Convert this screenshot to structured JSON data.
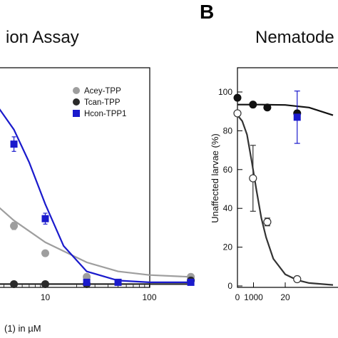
{
  "panel_b_letter": "B",
  "chart_data": [
    {
      "type": "scatter",
      "title": "ion Assay",
      "xlabel": "(1) in µM",
      "ylabel": "",
      "x_scale": "log",
      "xlim": [
        0.1,
        1000
      ],
      "x_ticks": [
        "10",
        "100",
        "1000"
      ],
      "legend_position": "top-right",
      "series": [
        {
          "name": "Acey-TPP",
          "color": "#9e9e9e",
          "marker": "circle",
          "x": [
            2,
            5,
            10,
            25,
            250
          ],
          "y": [
            58,
            33,
            18,
            5,
            5
          ],
          "error": [
            3,
            2,
            0,
            0,
            0
          ],
          "fit": {
            "x": [
              0.2,
              1,
              2,
              5,
              10,
              25,
              50,
              100,
              250
            ],
            "y": [
              92,
              70,
              56,
              36,
              24,
              13,
              8,
              6,
              5
            ]
          }
        },
        {
          "name": "Tcan-TPP",
          "color": "#2a2a2a",
          "marker": "circle",
          "x": [
            0.2,
            2,
            3.2,
            5,
            10,
            25,
            250
          ],
          "y": [
            3,
            1,
            1,
            1,
            1,
            1,
            3
          ],
          "error": [
            0,
            0,
            0,
            0,
            0,
            0,
            0
          ],
          "fit": {
            "x": [
              0.1,
              0.15,
              0.2,
              0.3,
              0.5,
              1,
              10,
              250
            ],
            "y": [
              14,
              9,
              4,
              1.5,
              1,
              1,
              1,
              1
            ]
          }
        },
        {
          "name": "Hcon-TPP1",
          "color": "#1a1acc",
          "marker": "square",
          "x": [
            2,
            5,
            10,
            25,
            50,
            250
          ],
          "y": [
            98,
            78,
            37,
            2,
            2,
            2
          ],
          "error": [
            9,
            4,
            3,
            0,
            0,
            0
          ],
          "fit": {
            "x": [
              0.2,
              1,
              2,
              3,
              5,
              7,
              10,
              15,
              25,
              50,
              100,
              250
            ],
            "y": [
              114,
              113,
              110,
              104,
              86,
              68,
              45,
              22,
              8,
              3,
              2,
              2
            ]
          }
        }
      ]
    },
    {
      "type": "scatter",
      "title": "Nematode",
      "xlabel": "",
      "ylabel": "Unaffected larvae (%)",
      "xlim": [
        0,
        40
      ],
      "ylim": [
        0,
        105
      ],
      "x_ticks": [
        "0",
        "20"
      ],
      "y_ticks": [
        "0",
        "20",
        "40",
        "60",
        "80",
        "100"
      ],
      "series": [
        {
          "color": "#111111",
          "marker": "filled-circle",
          "x": [
            0,
            6.5,
            12.5,
            25
          ],
          "y": [
            97,
            93.5,
            92,
            89
          ],
          "error": [
            0,
            0,
            0,
            0
          ],
          "fit": {
            "x": [
              0,
              10,
              20,
              30,
              40
            ],
            "y": [
              93.5,
              93.5,
              93.3,
              92,
              88
            ]
          }
        },
        {
          "color": "#1a1acc",
          "marker": "square",
          "x": [
            25
          ],
          "y": [
            87
          ],
          "error": [
            13.5
          ],
          "fit": null
        },
        {
          "color": "#333333",
          "marker": "open-circle",
          "x": [
            0,
            6.5,
            12.5,
            25
          ],
          "y": [
            89,
            55.5,
            33,
            3.5
          ],
          "error": [
            0,
            17,
            2,
            0
          ],
          "fit": {
            "x": [
              0,
              2,
              4,
              6,
              8,
              10,
              12,
              15,
              20,
              25,
              30,
              40
            ],
            "y": [
              88,
              85,
              78,
              64,
              49,
              35,
              25,
              14,
              6,
              3,
              1.5,
              0.5
            ]
          }
        }
      ]
    }
  ]
}
